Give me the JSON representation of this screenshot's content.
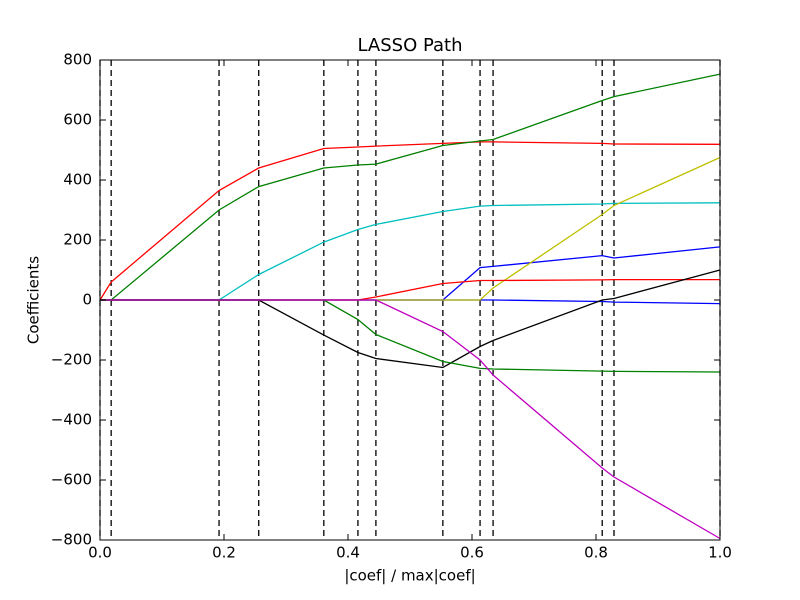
{
  "chart_data": {
    "type": "line",
    "title": "LASSO Path",
    "x_label": "|coef| / max|coef|",
    "y_label": "Coefficients",
    "x": [
      0,
      0.018,
      0.192,
      0.256,
      0.361,
      0.416,
      0.445,
      0.553,
      0.613,
      0.634,
      0.81,
      0.829,
      1.0
    ],
    "vlines": [
      0,
      0.018,
      0.192,
      0.256,
      0.361,
      0.416,
      0.445,
      0.553,
      0.613,
      0.634,
      0.81,
      0.829,
      1.0
    ],
    "series": [
      {
        "color": "#ff0000",
        "values": [
          0,
          60,
          365,
          440,
          505,
          510,
          513,
          522,
          527,
          527,
          522,
          520,
          519
        ]
      },
      {
        "color": "#008000",
        "values": [
          0,
          0,
          300,
          378,
          440,
          450,
          453,
          515,
          530,
          535,
          665,
          678,
          753
        ]
      },
      {
        "color": "#00bfbf",
        "values": [
          0,
          0,
          0,
          85,
          193,
          235,
          252,
          295,
          313,
          315,
          320,
          322,
          324
        ]
      },
      {
        "color": "#0000ff",
        "values": [
          0,
          0,
          0,
          0,
          0,
          0,
          0,
          0,
          108,
          112,
          148,
          140,
          177
        ]
      },
      {
        "color": "#0000ff",
        "values": [
          0,
          0,
          0,
          0,
          0,
          0,
          0,
          0,
          0,
          0,
          -5,
          -7,
          -12
        ]
      },
      {
        "color": "#bfbf00",
        "values": [
          0,
          0,
          0,
          0,
          0,
          0,
          0,
          0,
          0,
          40,
          285,
          315,
          475
        ]
      },
      {
        "color": "#ff0000",
        "values": [
          0,
          0,
          0,
          0,
          0,
          0,
          10,
          55,
          65,
          65,
          67,
          68,
          68
        ]
      },
      {
        "color": "#000000",
        "values": [
          0,
          0,
          0,
          0,
          -117,
          -175,
          -195,
          -225,
          -155,
          -135,
          0,
          5,
          100
        ]
      },
      {
        "color": "#008000",
        "values": [
          0,
          0,
          0,
          0,
          0,
          -65,
          -115,
          -205,
          -228,
          -230,
          -237,
          -238,
          -240
        ]
      },
      {
        "color": "#bf00bf",
        "values": [
          0,
          0,
          0,
          0,
          0,
          0,
          0,
          -105,
          -200,
          -250,
          -560,
          -590,
          -795
        ]
      }
    ],
    "xlim": [
      0,
      1.0
    ],
    "ylim": [
      -800,
      800
    ],
    "xticks": [
      {
        "value": 0,
        "label": "0.0"
      },
      0.2,
      0.4,
      0.6,
      0.8,
      {
        "value": 1.0,
        "label": "1.0"
      }
    ],
    "yticks": [
      {
        "value": -800,
        "label": "−800"
      },
      {
        "value": -600,
        "label": "−600"
      },
      {
        "value": -400,
        "label": "−400"
      },
      {
        "value": -200,
        "label": "−200"
      },
      0,
      200,
      400,
      600,
      800
    ],
    "grid": false
  }
}
